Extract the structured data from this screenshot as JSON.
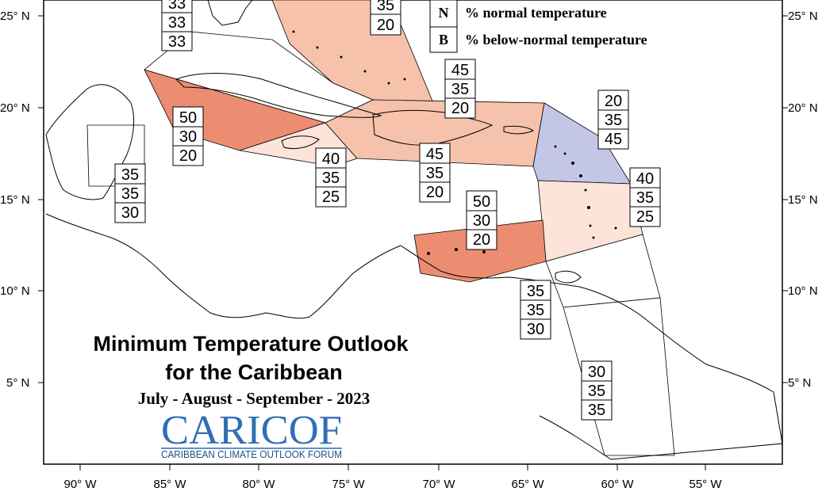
{
  "title": "Minimum Temperature Outlook",
  "subtitle_region": "for the Caribbean",
  "period": "July - August - September - 2023",
  "logo": {
    "text": "CARICOF",
    "tagline": "CARIBBEAN CLIMATE OUTLOOK FORUM"
  },
  "legend": [
    {
      "letter": "N",
      "label": "% normal temperature"
    },
    {
      "letter": "B",
      "label": "% below-normal temperature"
    }
  ],
  "colors": {
    "above_50": "#ec8d72",
    "above_45": "#f7c2ab",
    "above_40": "#fce4d9",
    "below_45": "#c3c6e4",
    "neutral": "#ffffff",
    "coast": "#000000"
  },
  "lat_ticks": [
    "25° N",
    "20° N",
    "15° N",
    "10° N",
    "5° N"
  ],
  "lon_ticks": [
    "90° W",
    "85° W",
    "80° W",
    "75° W",
    "70° W",
    "65° W",
    "60° W",
    "55° W"
  ],
  "regions": [
    {
      "id": "florida-bahamas-north",
      "probs": [
        "33",
        "33",
        "33"
      ]
    },
    {
      "id": "bahamas",
      "probs": [
        "35",
        "20"
      ]
    },
    {
      "id": "cayman-cuba-south",
      "probs": [
        "50",
        "30",
        "20"
      ]
    },
    {
      "id": "belize",
      "probs": [
        "35",
        "35",
        "30"
      ]
    },
    {
      "id": "jamaica",
      "probs": [
        "40",
        "35",
        "25"
      ]
    },
    {
      "id": "turks-caicos",
      "probs": [
        "45",
        "35",
        "20"
      ]
    },
    {
      "id": "hispaniola",
      "probs": [
        "45",
        "35",
        "20"
      ]
    },
    {
      "id": "leeward-islands",
      "probs": [
        "20",
        "35",
        "45"
      ]
    },
    {
      "id": "windward-islands",
      "probs": [
        "40",
        "35",
        "25"
      ]
    },
    {
      "id": "abc-islands",
      "probs": [
        "50",
        "30",
        "20"
      ]
    },
    {
      "id": "trinidad-tobago",
      "probs": [
        "35",
        "35",
        "30"
      ]
    },
    {
      "id": "guianas",
      "probs": [
        "30",
        "35",
        "35"
      ]
    }
  ]
}
